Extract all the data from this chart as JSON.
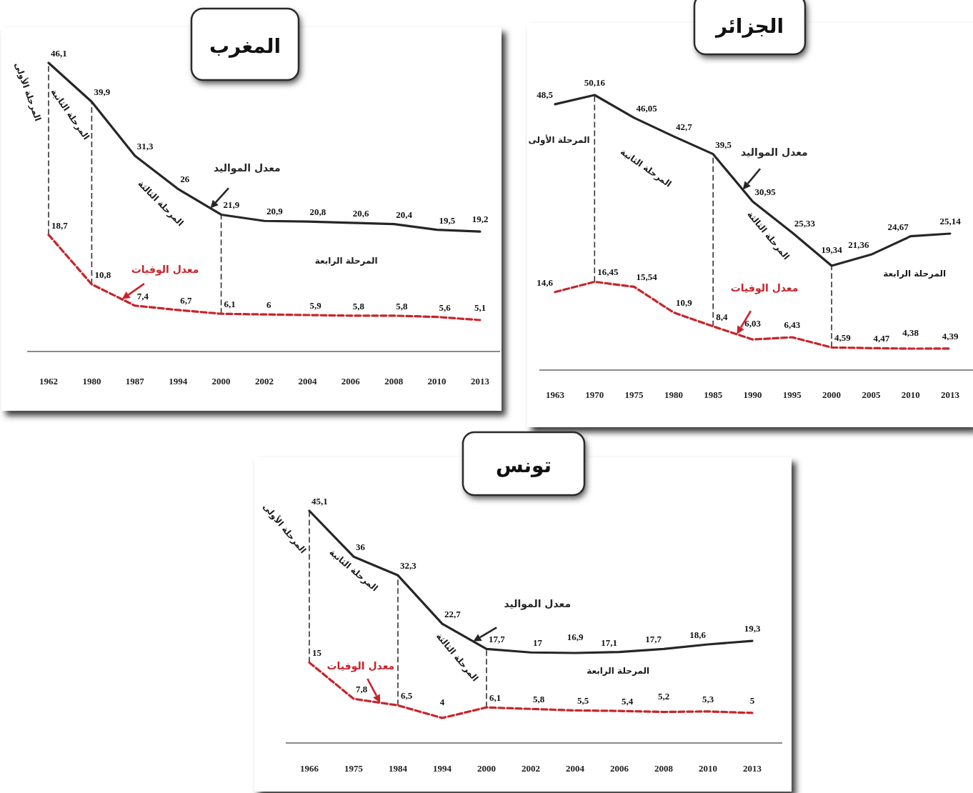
{
  "chart_data": [
    {
      "type": "line",
      "title": "المغرب",
      "categories": [
        "1962",
        "1980",
        "1987",
        "1994",
        "2000",
        "2002",
        "2004",
        "2006",
        "2008",
        "2010",
        "2013"
      ],
      "series": [
        {
          "name": "معدل المواليد",
          "color": "#262626",
          "line_style": "solid",
          "values": [
            46.1,
            39.9,
            31.3,
            26,
            21.9,
            20.9,
            20.8,
            20.6,
            20.4,
            19.5,
            19.2
          ],
          "value_labels": [
            "46,1",
            "39,9",
            "31,3",
            "26",
            "21,9",
            "20,9",
            "20,8",
            "20,6",
            "20,4",
            "19,5",
            "19,2"
          ]
        },
        {
          "name": "معدل الوفيات",
          "color": "#c8242b",
          "line_style": "dashed",
          "values": [
            18.7,
            10.8,
            7.4,
            6.7,
            6.1,
            6,
            5.9,
            5.8,
            5.8,
            5.6,
            5.1
          ],
          "value_labels": [
            "18,7",
            "10,8",
            "7,4",
            "6,7",
            "6,1",
            "6",
            "5,9",
            "5,8",
            "5,8",
            "5,6",
            "5,1"
          ]
        }
      ],
      "ref_lines": [
        {
          "axis": "x",
          "value": "1962",
          "color": "#333333",
          "line_style": "dashed"
        },
        {
          "axis": "x",
          "value": "1980",
          "color": "#333333",
          "line_style": "dashed"
        },
        {
          "axis": "x",
          "value": "2000",
          "color": "#333333",
          "line_style": "dashed"
        }
      ],
      "annotations": [
        "المرحلة الأولى",
        "المرحلة الثانية",
        "المرحلة الثالثة",
        "المرحلة الرابعة"
      ],
      "tick_labels": "x"
    },
    {
      "type": "line",
      "title": "الجزائر",
      "categories": [
        "1963",
        "1970",
        "1975",
        "1980",
        "1985",
        "1990",
        "1995",
        "2000",
        "2005",
        "2010",
        "2013"
      ],
      "series": [
        {
          "name": "معدل المواليد",
          "color": "#262626",
          "line_style": "solid",
          "values": [
            48.5,
            50.16,
            46.05,
            42.7,
            39.5,
            30.95,
            25.33,
            19.34,
            21.36,
            24.67,
            25.14
          ],
          "value_labels": [
            "48,5",
            "50,16",
            "46,05",
            "42,7",
            "39,5",
            "30,95",
            "25,33",
            "19,34",
            "21,36",
            "24,67",
            "25,14"
          ]
        },
        {
          "name": "معدل الوفيات",
          "color": "#c8242b",
          "line_style": "dashed",
          "values": [
            14.6,
            16.45,
            15.54,
            10.9,
            8.4,
            6.03,
            6.43,
            4.59,
            4.47,
            4.38,
            4.39
          ],
          "value_labels": [
            "14,6",
            "16,45",
            "15,54",
            "10,9",
            "8,4",
            "6,03",
            "6,43",
            "4,59",
            "4,47",
            "4,38",
            "4,39"
          ]
        }
      ],
      "ref_lines": [
        {
          "axis": "x",
          "value": "1970",
          "color": "#333333",
          "line_style": "dashed"
        },
        {
          "axis": "x",
          "value": "1985",
          "color": "#333333",
          "line_style": "dashed"
        },
        {
          "axis": "x",
          "value": "2000",
          "color": "#333333",
          "line_style": "dashed"
        }
      ],
      "annotations": [
        "المرحلة الأولى",
        "المرحلة الثانية",
        "المرحلة الثالثة",
        "المرحلة الرابعة"
      ],
      "tick_labels": "x"
    },
    {
      "type": "line",
      "title": "تونس",
      "categories": [
        "1966",
        "1975",
        "1984",
        "1994",
        "2000",
        "2002",
        "2004",
        "2006",
        "2008",
        "2010",
        "2013"
      ],
      "series": [
        {
          "name": "معدل المواليد",
          "color": "#262626",
          "line_style": "solid",
          "values": [
            45.1,
            36,
            32.3,
            22.7,
            17.7,
            17,
            16.9,
            17.1,
            17.7,
            18.6,
            19.3
          ],
          "value_labels": [
            "45,1",
            "36",
            "32,3",
            "22,7",
            "17,7",
            "17",
            "16,9",
            "17,1",
            "17,7",
            "18,6",
            "19,3"
          ]
        },
        {
          "name": "معدل الوفيات",
          "color": "#c8242b",
          "line_style": "dashed",
          "values": [
            15,
            7.8,
            6.5,
            4,
            6.1,
            5.8,
            5.5,
            5.4,
            5.2,
            5.3,
            5
          ],
          "value_labels": [
            "15",
            "7,8",
            "6,5",
            "4",
            "6,1",
            "5,8",
            "5,5",
            "5,4",
            "5,2",
            "5,3",
            "5"
          ]
        }
      ],
      "ref_lines": [
        {
          "axis": "x",
          "value": "1966",
          "color": "#333333",
          "line_style": "dashed"
        },
        {
          "axis": "x",
          "value": "1984",
          "color": "#333333",
          "line_style": "dashed"
        },
        {
          "axis": "x",
          "value": "2000",
          "color": "#333333",
          "line_style": "dashed"
        }
      ],
      "annotations": [
        "المرحلة الأولى",
        "المرحلة الثانية",
        "المرحلة الثالثة",
        "المرحلة الرابعة"
      ],
      "tick_labels": "x"
    }
  ]
}
